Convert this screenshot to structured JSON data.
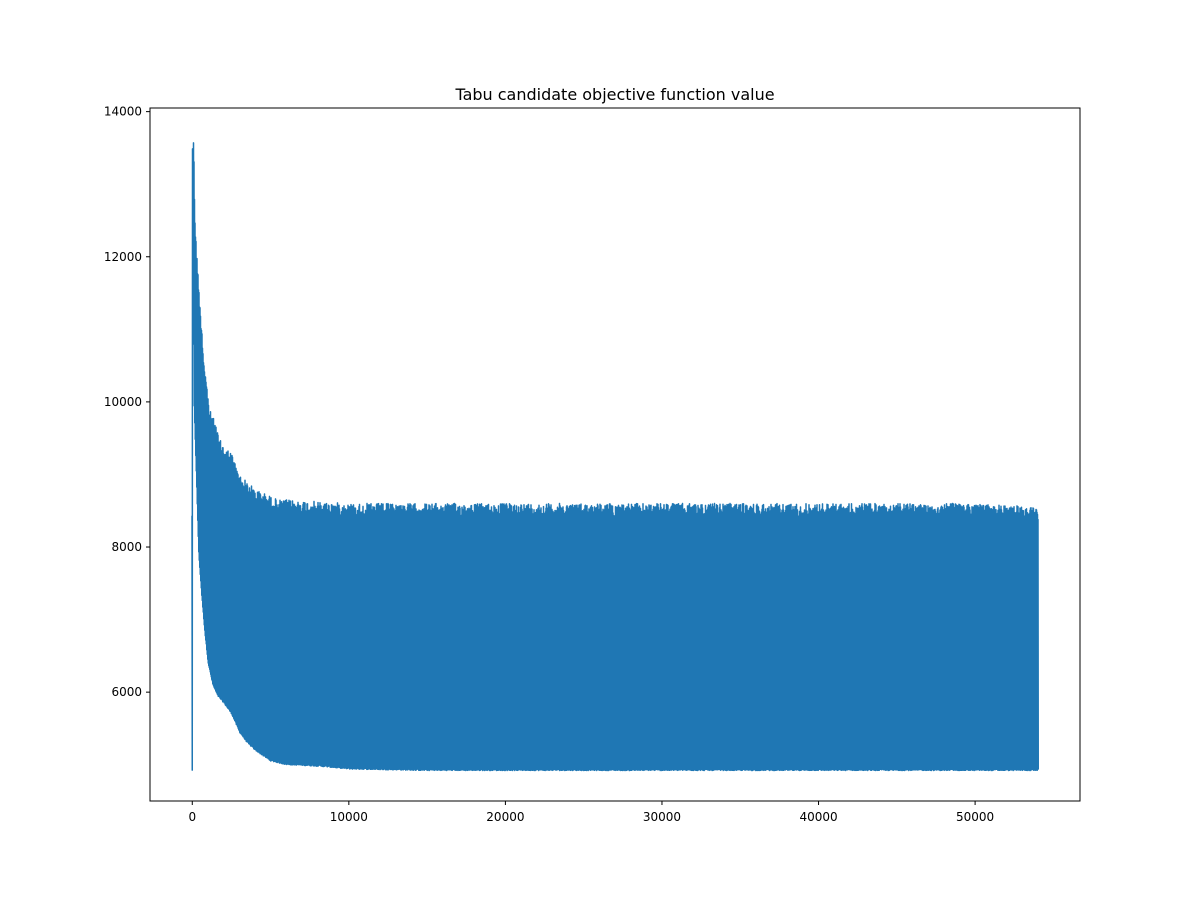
{
  "chart_data": {
    "type": "line",
    "title": "Tabu candidate objective function value",
    "xlabel": "",
    "ylabel": "",
    "xlim": [
      -2700,
      56700
    ],
    "ylim": [
      4500,
      14050
    ],
    "x_ticks": [
      0,
      10000,
      20000,
      30000,
      40000,
      50000
    ],
    "y_ticks": [
      6000,
      8000,
      10000,
      12000,
      14000
    ],
    "series": [
      {
        "color": "#1f77b4",
        "x_range": [
          0,
          54000
        ],
        "upper_envelope": [
          [
            0,
            13600
          ],
          [
            100,
            13600
          ],
          [
            150,
            12800
          ],
          [
            200,
            12400
          ],
          [
            300,
            12000
          ],
          [
            400,
            11700
          ],
          [
            500,
            11300
          ],
          [
            600,
            11100
          ],
          [
            700,
            10700
          ],
          [
            800,
            10500
          ],
          [
            900,
            10300
          ],
          [
            1000,
            10100
          ],
          [
            1100,
            9900
          ],
          [
            1300,
            9800
          ],
          [
            1500,
            9700
          ],
          [
            1700,
            9500
          ],
          [
            2000,
            9400
          ],
          [
            2500,
            9300
          ],
          [
            3000,
            9000
          ],
          [
            3500,
            8900
          ],
          [
            4000,
            8800
          ],
          [
            4500,
            8750
          ],
          [
            5000,
            8700
          ],
          [
            5500,
            8650
          ],
          [
            6000,
            8650
          ],
          [
            10000,
            8600
          ],
          [
            20000,
            8600
          ],
          [
            30000,
            8600
          ],
          [
            40000,
            8600
          ],
          [
            50000,
            8600
          ],
          [
            54000,
            8550
          ]
        ],
        "lower_envelope": [
          [
            0,
            13600
          ],
          [
            100,
            10000
          ],
          [
            200,
            9300
          ],
          [
            300,
            8600
          ],
          [
            400,
            7900
          ],
          [
            600,
            7300
          ],
          [
            800,
            6800
          ],
          [
            1000,
            6400
          ],
          [
            1300,
            6100
          ],
          [
            1600,
            5950
          ],
          [
            2000,
            5850
          ],
          [
            2500,
            5700
          ],
          [
            3000,
            5450
          ],
          [
            3500,
            5300
          ],
          [
            4000,
            5200
          ],
          [
            5000,
            5050
          ],
          [
            6000,
            5000
          ],
          [
            8000,
            4980
          ],
          [
            10000,
            4940
          ],
          [
            15000,
            4920
          ],
          [
            20000,
            4920
          ],
          [
            30000,
            4920
          ],
          [
            40000,
            4920
          ],
          [
            50000,
            4920
          ],
          [
            54000,
            4920
          ]
        ]
      }
    ]
  }
}
